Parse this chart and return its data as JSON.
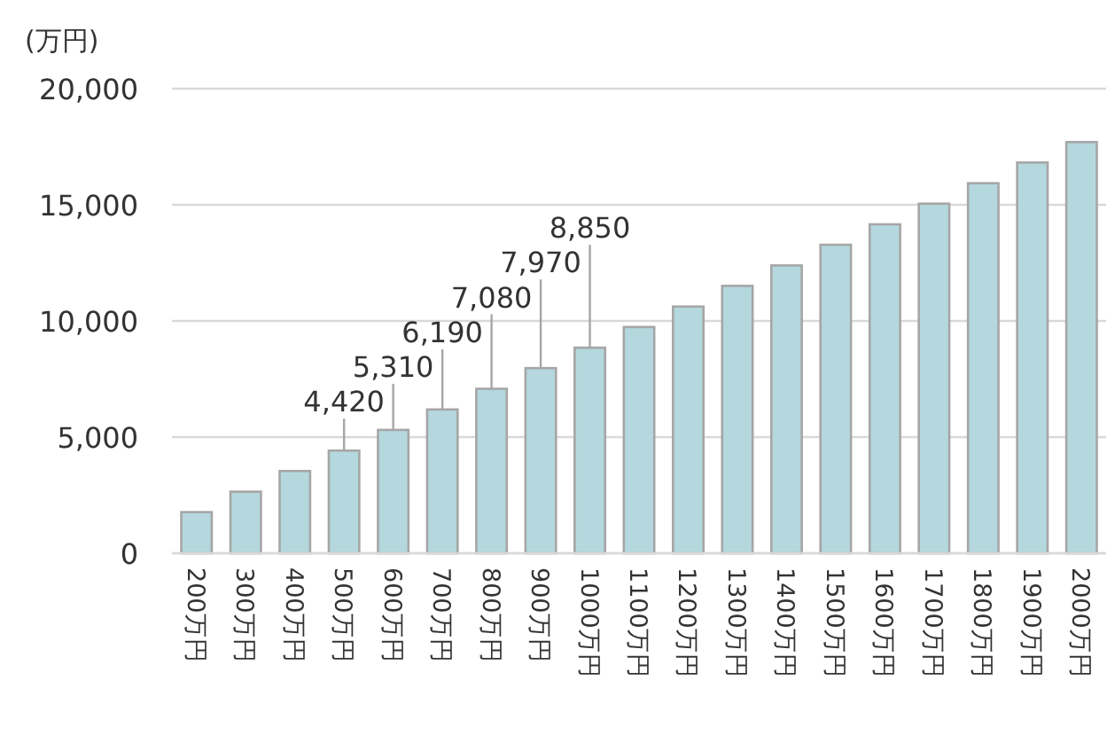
{
  "chart_data": {
    "type": "bar",
    "ylabel": "(万円)",
    "categories": [
      "200万円",
      "300万円",
      "400万円",
      "500万円",
      "600万円",
      "700万円",
      "800万円",
      "900万円",
      "1000万円",
      "1100万円",
      "1200万円",
      "1300万円",
      "1400万円",
      "1500万円",
      "1600万円",
      "1700万円",
      "1800万円",
      "1900万円",
      "2000万円"
    ],
    "values": [
      1770,
      2650,
      3540,
      4420,
      5310,
      6190,
      7080,
      7970,
      8850,
      9740,
      10620,
      11510,
      12390,
      13280,
      14160,
      15050,
      15930,
      16820,
      17700
    ],
    "value_labels": [
      null,
      null,
      null,
      "4,420",
      "5,310",
      "6,190",
      "7,080",
      "7,970",
      "8,850",
      null,
      null,
      null,
      null,
      null,
      null,
      null,
      null,
      null,
      null
    ],
    "color": "#b4d8de",
    "ylim": [
      0,
      20000
    ],
    "yticks": [
      {
        "value": 0,
        "label": "0"
      },
      {
        "value": 5000,
        "label": "5,000"
      },
      {
        "value": 10000,
        "label": "10,000"
      },
      {
        "value": 15000,
        "label": "15,000"
      },
      {
        "value": 20000,
        "label": "20,000"
      }
    ],
    "grid": "y"
  }
}
